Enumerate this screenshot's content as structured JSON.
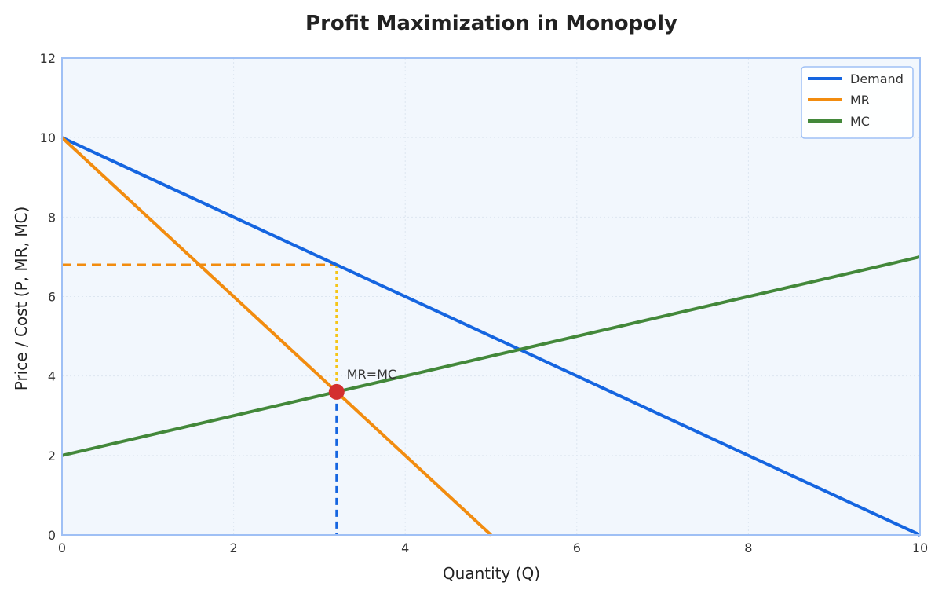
{
  "chart_data": {
    "type": "line",
    "title": "Profit Maximization in Monopoly",
    "xlabel": "Quantity (Q)",
    "ylabel": "Price / Cost (P, MR, MC)",
    "xlim": [
      0,
      10
    ],
    "ylim": [
      0,
      12
    ],
    "xticks": [
      0,
      2,
      4,
      6,
      8,
      10
    ],
    "yticks": [
      0,
      2,
      4,
      6,
      8,
      10,
      12
    ],
    "grid": true,
    "legend_position": "top-right",
    "series": [
      {
        "name": "Demand",
        "color": "#1565e0",
        "x": [
          0,
          10
        ],
        "y": [
          10,
          0
        ]
      },
      {
        "name": "MR",
        "color": "#f28c0f",
        "x": [
          0,
          5
        ],
        "y": [
          10,
          0
        ]
      },
      {
        "name": "MC",
        "color": "#43883a",
        "x": [
          0,
          10
        ],
        "y": [
          2,
          7
        ]
      }
    ],
    "optimum": {
      "q": 3.2,
      "mr_mc": 3.6,
      "price": 6.8,
      "label": "MR=MC",
      "color": "#d32f2f"
    },
    "guides": {
      "price_line_color": "#f28c0f",
      "demand_drop_color": "#f5c518",
      "quantity_drop_color": "#1565e0"
    },
    "plot_background": "#f2f7fd",
    "frame_color": "#9fc0f5"
  }
}
